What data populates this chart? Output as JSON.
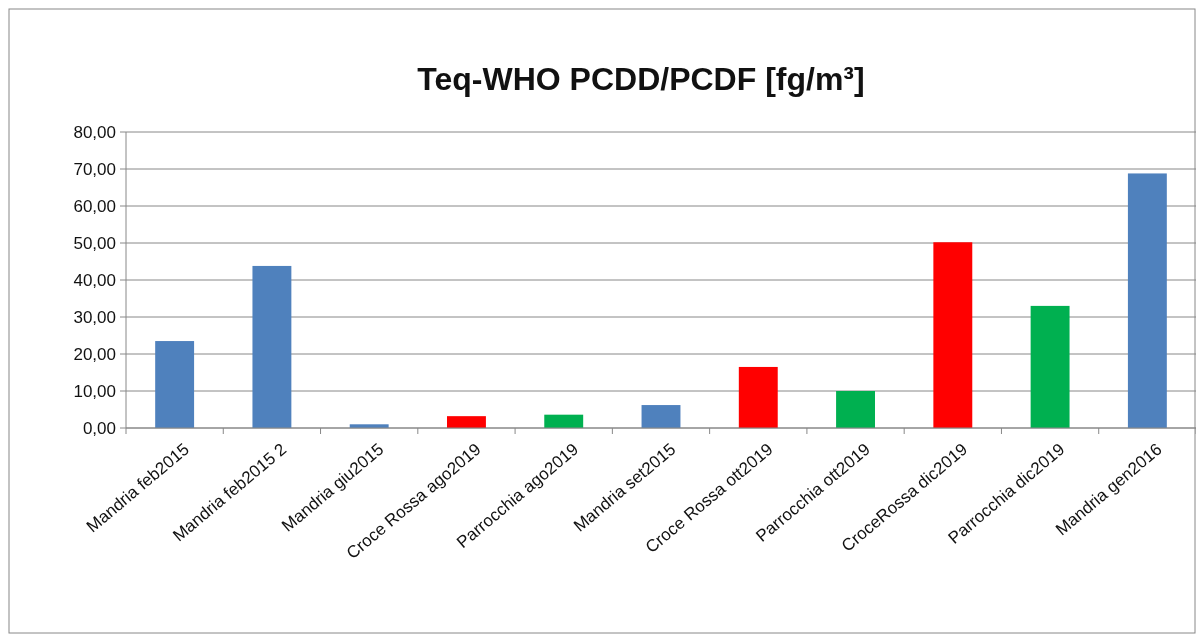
{
  "chart_data": {
    "type": "bar",
    "title": "Teq-WHO PCDD/PCDF [fg/m³]",
    "categories": [
      "Mandria feb2015",
      "Mandria feb2015 2",
      "Mandria giu2015",
      "Croce Rossa ago2019",
      "Parrocchia ago2019",
      "Mandria set2015",
      "Croce Rossa ott2019",
      "Parrocchia ott2019",
      "CroceRossa dic2019",
      "Parrocchia dic2019",
      "Mandria gen2016"
    ],
    "values": [
      23.5,
      43.8,
      1,
      3.2,
      3.6,
      6.2,
      16.5,
      10,
      50.2,
      33,
      68.8
    ],
    "colors": [
      "#4f81bd",
      "#4f81bd",
      "#4f81bd",
      "#ff0000",
      "#00b050",
      "#4f81bd",
      "#ff0000",
      "#00b050",
      "#ff0000",
      "#00b050",
      "#4f81bd"
    ],
    "ylim": [
      0,
      80
    ],
    "yticks": [
      {
        "value": 0,
        "label": "0,00"
      },
      {
        "value": 10,
        "label": "10,00"
      },
      {
        "value": 20,
        "label": "20,00"
      },
      {
        "value": 30,
        "label": "30,00"
      },
      {
        "value": 40,
        "label": "40,00"
      },
      {
        "value": 50,
        "label": "50,00"
      },
      {
        "value": 60,
        "label": "60,00"
      },
      {
        "value": 70,
        "label": "70,00"
      },
      {
        "value": 80,
        "label": "80,00"
      }
    ],
    "grid": "y"
  }
}
